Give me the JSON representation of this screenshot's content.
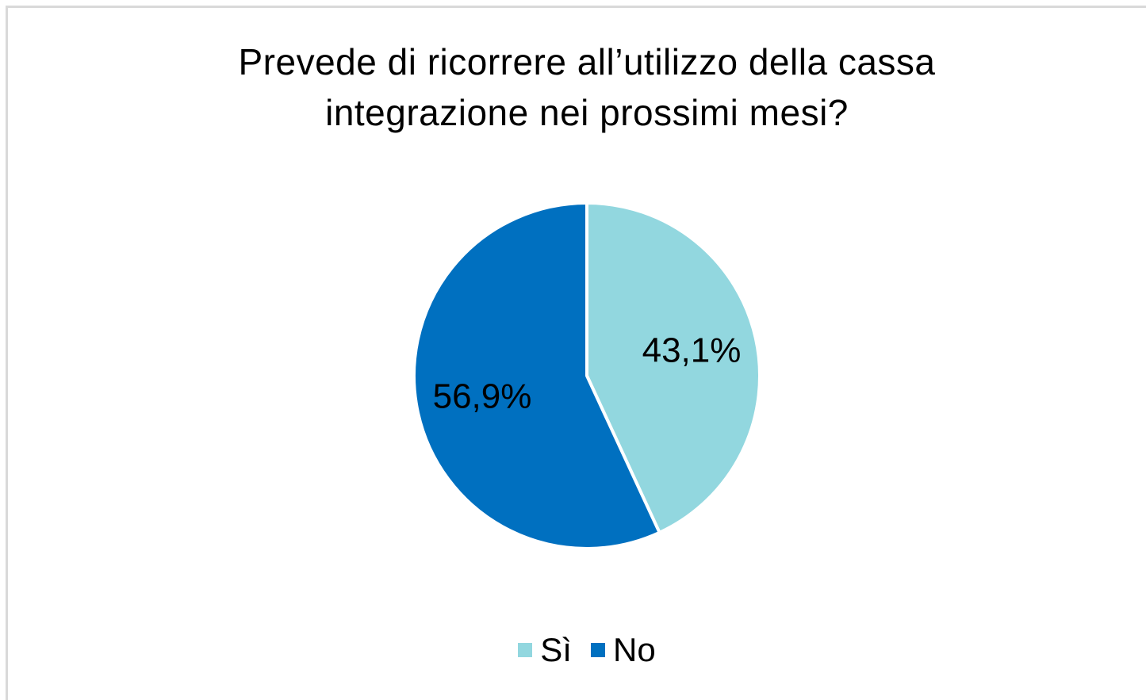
{
  "chart_data": {
    "type": "pie",
    "title": "Prevede di ricorrere all’utilizzo della cassa integrazione nei prossimi mesi?",
    "title_lines": [
      "Prevede di ricorrere all’utilizzo della cassa",
      "integrazione nei prossimi mesi?"
    ],
    "categories": [
      "Sì",
      "No"
    ],
    "values": [
      43.1,
      56.9
    ],
    "labels": [
      "43,1%",
      "56,9%"
    ],
    "colors": [
      "#92d7df",
      "#0070c0"
    ],
    "legend_position": "bottom"
  }
}
